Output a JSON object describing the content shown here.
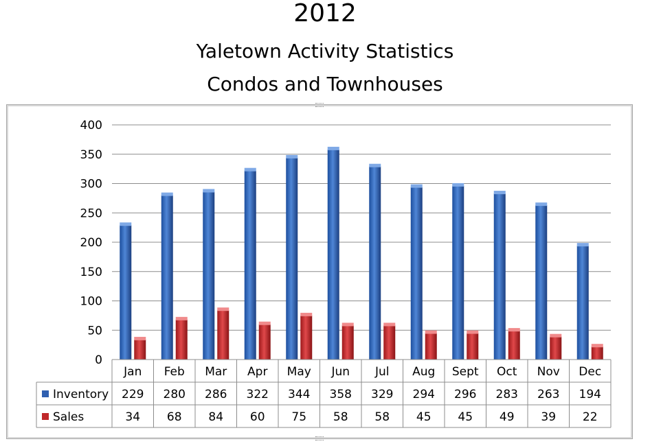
{
  "chart_data": {
    "type": "bar",
    "title": "2012",
    "subtitle_1": "Yaletown Activity Statistics",
    "subtitle_2": "Condos and Townhouses",
    "categories": [
      "Jan",
      "Feb",
      "Mar",
      "Apr",
      "May",
      "Jun",
      "Jul",
      "Aug",
      "Sept",
      "Oct",
      "Nov",
      "Dec"
    ],
    "series": [
      {
        "name": "Inventory",
        "values": [
          229,
          280,
          286,
          322,
          344,
          358,
          329,
          294,
          296,
          283,
          263,
          194
        ],
        "color": "#2f5fb0"
      },
      {
        "name": "Sales",
        "values": [
          34,
          68,
          84,
          60,
          75,
          58,
          58,
          45,
          45,
          49,
          39,
          22
        ],
        "color": "#c0282a"
      }
    ],
    "ylim": [
      0,
      400
    ],
    "yticks": [
      "0",
      "50",
      "100",
      "150",
      "200",
      "250",
      "300",
      "350",
      "400"
    ],
    "grid": true,
    "legend": "data-table",
    "table_values": {
      "Inventory": [
        "229",
        "280",
        "286",
        "322",
        "344",
        "358",
        "329",
        "294",
        "296",
        "283",
        "263",
        "194"
      ],
      "Sales": [
        "34",
        "68",
        "84",
        "60",
        "75",
        "58",
        "58",
        "45",
        "45",
        "49",
        "39",
        "22"
      ]
    }
  }
}
